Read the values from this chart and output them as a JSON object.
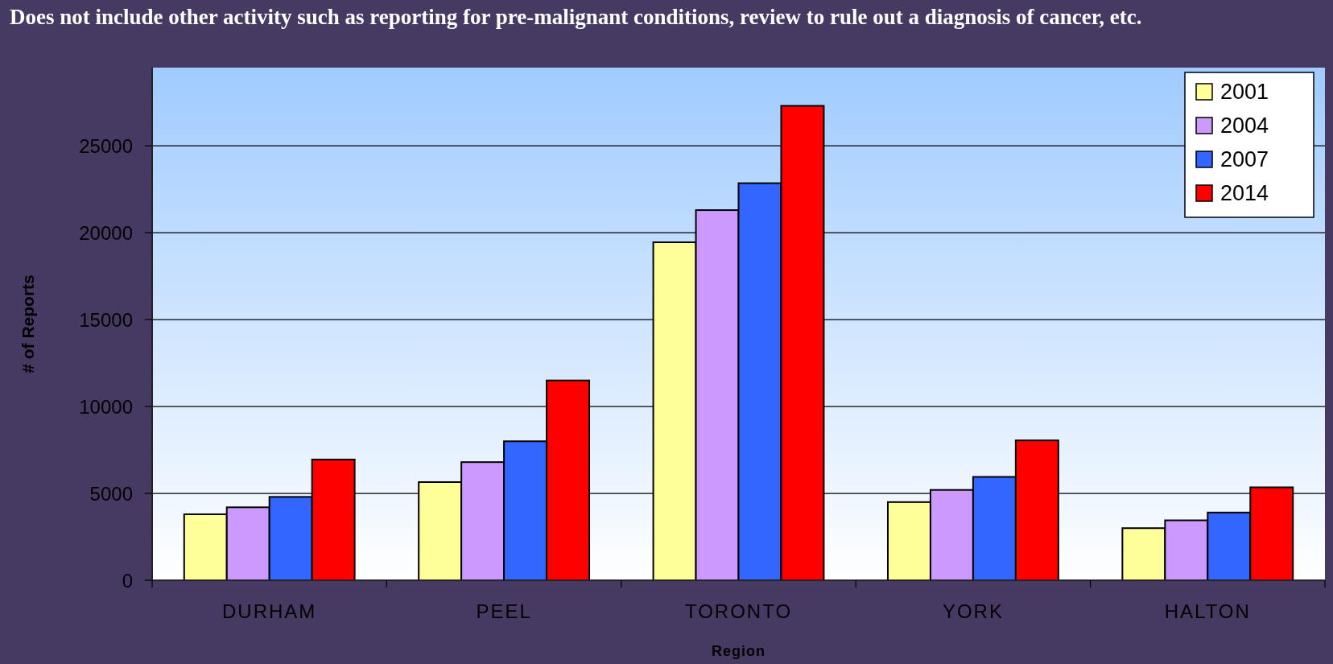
{
  "chart_data": {
    "type": "bar",
    "annotations": [
      "Does not include other activity such as reporting for pre-malignant conditions, review to rule out a diagnosis of cancer, etc."
    ],
    "xlabel": "Region",
    "ylabel": "# of Reports",
    "categories": [
      "DURHAM",
      "PEEL",
      "TORONTO",
      "YORK",
      "HALTON"
    ],
    "series": [
      {
        "name": "2001",
        "color": "#ffff99",
        "values": [
          3800,
          5650,
          19450,
          4500,
          3000
        ]
      },
      {
        "name": "2004",
        "color": "#cc99ff",
        "values": [
          4200,
          6800,
          21300,
          5200,
          3450
        ]
      },
      {
        "name": "2007",
        "color": "#3366ff",
        "values": [
          4800,
          8000,
          22850,
          5950,
          3900
        ]
      },
      {
        "name": "2014",
        "color": "#ff0000",
        "values": [
          6950,
          11500,
          27300,
          8050,
          5350
        ]
      }
    ],
    "ylim": [
      0,
      29500
    ],
    "yticks": [
      0,
      5000,
      10000,
      15000,
      20000,
      25000
    ],
    "grid": "y",
    "legend": "top right"
  }
}
